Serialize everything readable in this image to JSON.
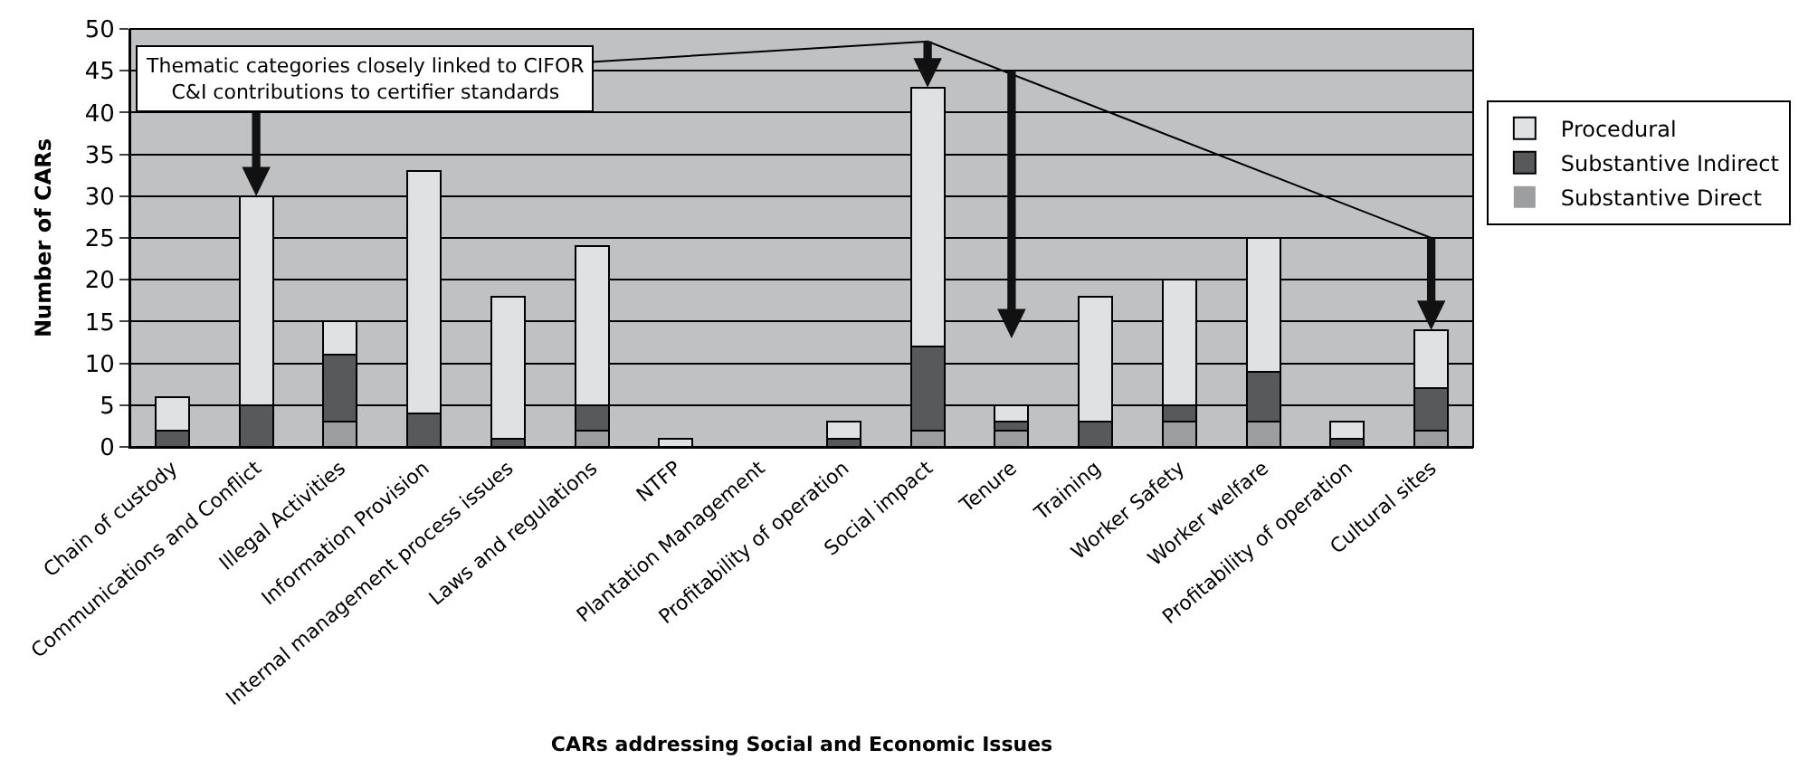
{
  "chart_data": {
    "type": "bar",
    "stacked": true,
    "xlabel": "CARs addressing Social and Economic Issues",
    "ylabel": "Number of CARs",
    "categories": [
      "Chain of custody",
      "Communications and Conflict",
      "Illegal Activities",
      "Information Provision",
      "Internal management process issues",
      "Laws and regulations",
      "NTFP",
      "Plantation Management",
      "Profitability of operation",
      "Social impact",
      "Tenure",
      "Training",
      "Worker Safety",
      "Worker welfare",
      "Profitability of operation",
      "Cultural sites"
    ],
    "series": [
      {
        "name": "Substantive Direct",
        "color": "#9d9ea0",
        "values": [
          0,
          0,
          3,
          0,
          0,
          2,
          0,
          0,
          0,
          2,
          2,
          0,
          3,
          3,
          0,
          2
        ]
      },
      {
        "name": "Substantive Indirect",
        "color": "#58595b",
        "values": [
          2,
          5,
          8,
          4,
          1,
          3,
          0,
          0,
          1,
          10,
          1,
          3,
          2,
          6,
          1,
          5
        ]
      },
      {
        "name": "Procedural",
        "color": "#e0e1e3",
        "values": [
          4,
          25,
          4,
          29,
          17,
          19,
          1,
          0,
          2,
          31,
          2,
          15,
          15,
          16,
          2,
          7
        ]
      }
    ],
    "ylim": [
      0,
      50
    ],
    "yticks": [
      0,
      5,
      10,
      15,
      20,
      25,
      30,
      35,
      40,
      45,
      50
    ],
    "grid": "y",
    "legend": "right",
    "annotations": [
      "Thematic categories closely linked to CIFOR\nC&I contributions to certifier standards"
    ]
  }
}
